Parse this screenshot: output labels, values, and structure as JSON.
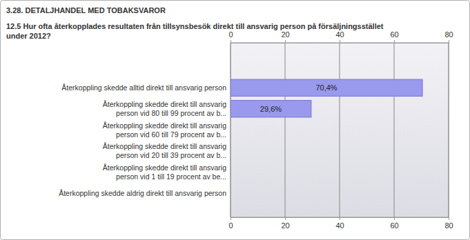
{
  "chart_data": {
    "type": "bar",
    "orientation": "horizontal",
    "title": "3.28. DETALJHANDEL MED TOBAKSVAROR",
    "subtitle": "12.5 Hur ofta återkopplades resultaten från tillsynsbesök direkt till ansvarig person på försäljningsstället under 2012?",
    "categories": [
      "Återkoppling skedde alltid direkt till ansvarig person",
      "Återkoppling skedde direkt till ansvarig person vid 80 till 99 procent av b...",
      "Återkoppling skedde direkt till ansvarig person vid 60 till 79 procent av b...",
      "Återkoppling skedde direkt till ansvarig person vid 20 till 39 procent av b...",
      "Återkoppling skedde direkt till ansvarig person vid 1 till 19 procent av be...",
      "Återkoppling skedde aldrig direkt till ansvarig person"
    ],
    "values": [
      70.4,
      29.6,
      0,
      0,
      0,
      0
    ],
    "value_labels": [
      "70,4%",
      "29,6%",
      null,
      null,
      null,
      null
    ],
    "data_labels": true,
    "color": "#9999ee",
    "xlim": [
      0,
      80
    ],
    "xticks": [
      0,
      20,
      40,
      60,
      80
    ],
    "grid": true
  }
}
